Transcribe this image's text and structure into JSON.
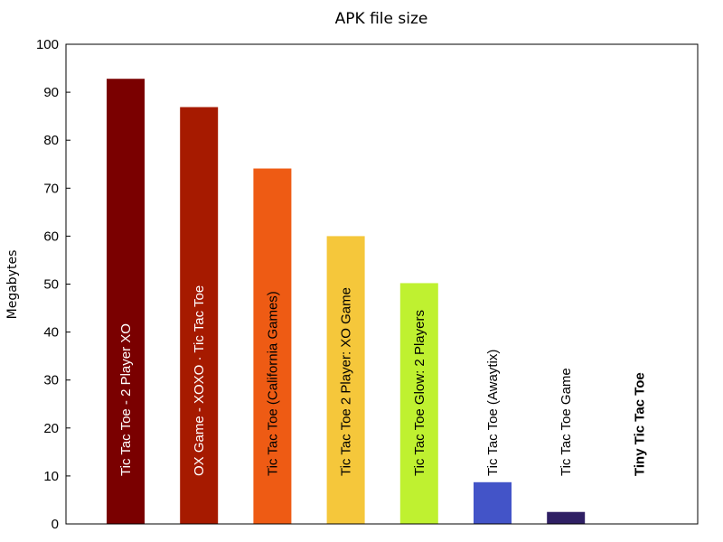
{
  "chart_data": {
    "type": "bar",
    "title": "APK file size",
    "xlabel": "",
    "ylabel": "Megabytes",
    "ylim": [
      0,
      100
    ],
    "yticks": [
      0,
      10,
      20,
      30,
      40,
      50,
      60,
      70,
      80,
      90,
      100
    ],
    "grid": false,
    "legend": "none",
    "categories": [
      "Tic Tac Toe - 2 Player XO",
      "OX Game - XOXO · Tic Tac Toe",
      "Tic Tac Toe (California Games)",
      "Tic Tac Toe 2 Player: XO Game",
      "Tic Tac Toe Glow: 2 Players",
      "Tic Tac Toe (Awaytix)",
      "Tic Tac Toe Game",
      "Tiny Tic Tac Toe"
    ],
    "values": [
      92.8,
      86.9,
      74.1,
      60.0,
      50.2,
      8.7,
      2.5,
      0.0
    ],
    "colors": [
      "#7a0000",
      "#a61a00",
      "#ee5b14",
      "#f5c73b",
      "#bff130",
      "#4354c8",
      "#2f1f64",
      "#ffffff"
    ],
    "label_colors": [
      "#ffffff",
      "#ffffff",
      "#000000",
      "#000000",
      "#000000",
      "#000000",
      "#000000",
      "#000000"
    ],
    "highlighted": "Tiny Tic Tac Toe"
  }
}
